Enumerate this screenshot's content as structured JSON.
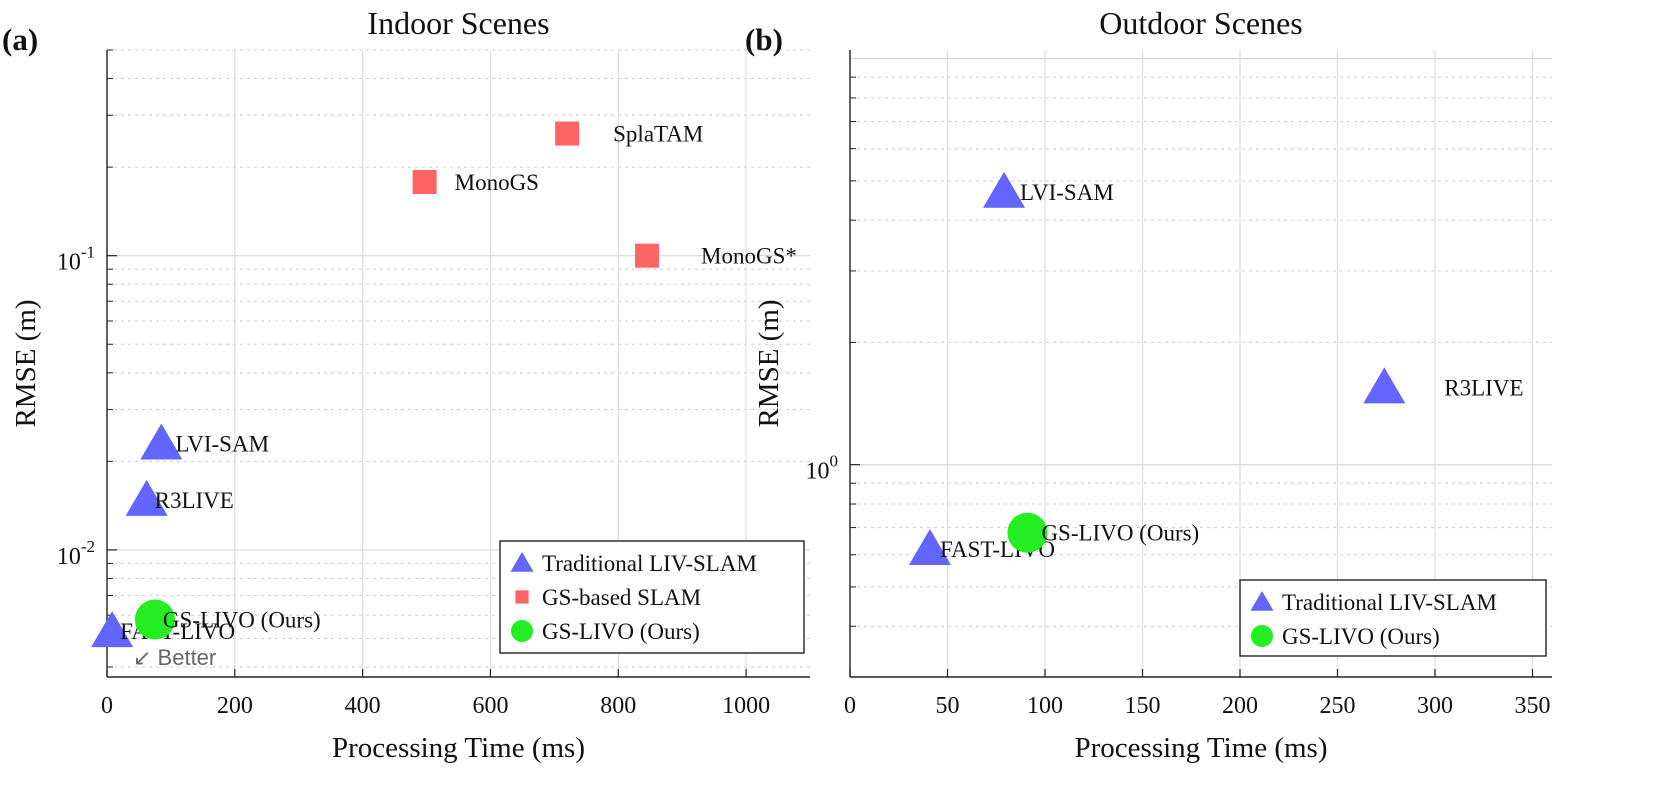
{
  "chart_data": [
    {
      "type": "scatter",
      "panel_label": "(a)",
      "title": "Indoor Scenes",
      "xlabel": "Processing Time (ms)",
      "ylabel": "RMSE (m)",
      "yscale": "log",
      "xlim": [
        0,
        1100
      ],
      "ylim": [
        0.0037,
        0.5
      ],
      "xticks": [
        0,
        200,
        400,
        600,
        800,
        1000
      ],
      "xtick_labels": [
        "0",
        "200",
        "400",
        "600",
        "800",
        "1000"
      ],
      "yticks": [
        0.01,
        0.1
      ],
      "ytick_labels": [
        {
          "base": "10",
          "exp": "-2"
        },
        {
          "base": "10",
          "exp": "-1"
        }
      ],
      "grid": true,
      "legend": {
        "placement": "bottom-right",
        "entries": [
          {
            "series": "traditional",
            "label": "Traditional LIV-SLAM"
          },
          {
            "series": "gs",
            "label": "GS-based SLAM"
          },
          {
            "series": "ours",
            "label": "GS-LIVO (Ours)"
          }
        ]
      },
      "annotation": "↙ Better",
      "series": [
        {
          "name": "traditional",
          "label": "Traditional LIV-SLAM",
          "marker": "triangle",
          "color": "#6464ff",
          "points": [
            {
              "label": "LVI-SAM",
              "x": 85,
              "y": 0.023
            },
            {
              "label": "R3LIVE",
              "x": 62,
              "y": 0.0148
            },
            {
              "label": "FAST-LIVO",
              "x": 8,
              "y": 0.0053
            }
          ]
        },
        {
          "name": "gs",
          "label": "GS-based SLAM",
          "marker": "square",
          "color": "#ff6464",
          "points": [
            {
              "label": "SplaTAM",
              "x": 720,
              "y": 0.26
            },
            {
              "label": "MonoGS",
              "x": 497,
              "y": 0.178
            },
            {
              "label": "MonoGS*",
              "x": 845,
              "y": 0.1
            }
          ]
        },
        {
          "name": "ours",
          "label": "GS-LIVO (Ours)",
          "marker": "circle",
          "color": "#22ee22",
          "text_color": "#1a8a1a",
          "points": [
            {
              "label": "GS-LIVO (Ours)",
              "x": 75,
              "y": 0.0058
            }
          ]
        }
      ]
    },
    {
      "type": "scatter",
      "panel_label": "(b)",
      "title": "Outdoor Scenes",
      "xlabel": "Processing Time (ms)",
      "ylabel": "RMSE (m)",
      "yscale": "log",
      "xlim": [
        0,
        360
      ],
      "ylim": [
        0.3,
        10.5
      ],
      "xticks": [
        0,
        50,
        100,
        150,
        200,
        250,
        300,
        350
      ],
      "xtick_labels": [
        "0",
        "50",
        "100",
        "150",
        "200",
        "250",
        "300",
        "350"
      ],
      "yticks": [
        1
      ],
      "ytick_labels": [
        {
          "base": "10",
          "exp": "0"
        }
      ],
      "grid": true,
      "legend": {
        "placement": "bottom-right",
        "entries": [
          {
            "series": "traditional",
            "label": "Traditional LIV-SLAM"
          },
          {
            "series": "ours",
            "label": "GS-LIVO (Ours)"
          }
        ]
      },
      "series": [
        {
          "name": "traditional",
          "label": "Traditional LIV-SLAM",
          "marker": "triangle",
          "color": "#6464ff",
          "points": [
            {
              "label": "LVI-SAM",
              "x": 79,
              "y": 4.7
            },
            {
              "label": "R3LIVE",
              "x": 274,
              "y": 1.55
            },
            {
              "label": "FAST-LIVO",
              "x": 41,
              "y": 0.62
            }
          ]
        },
        {
          "name": "ours",
          "label": "GS-LIVO (Ours)",
          "marker": "circle",
          "color": "#22ee22",
          "text_color": "#1a8a1a",
          "points": [
            {
              "label": "GS-LIVO (Ours)",
              "x": 91,
              "y": 0.68
            }
          ]
        }
      ]
    }
  ]
}
